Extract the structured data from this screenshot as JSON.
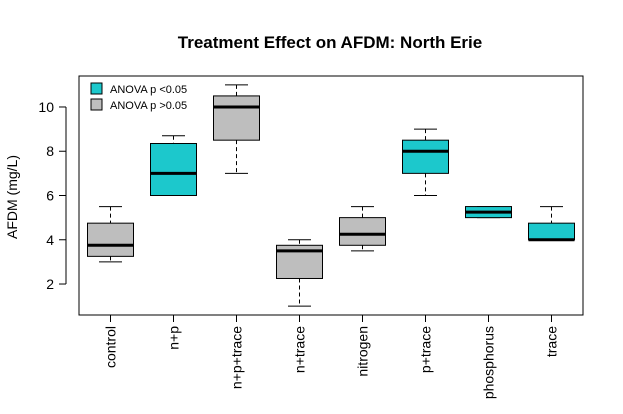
{
  "chart_data": {
    "type": "box",
    "title": "Treatment Effect on AFDM: North Erie",
    "xlabel": "",
    "ylabel": "AFDM (mg/L)",
    "ylim": [
      0.6,
      11.4
    ],
    "yticks": [
      2,
      4,
      6,
      8,
      10
    ],
    "colors": {
      "significant": "#1cc8cc",
      "not_significant": "#bebebe"
    },
    "legend": {
      "placement": "top-left",
      "entries": [
        {
          "label": "ANOVA p <0.05",
          "group": "significant"
        },
        {
          "label": "ANOVA p >0.05",
          "group": "not_significant"
        }
      ]
    },
    "boxes": [
      {
        "category": "control",
        "min": 3.0,
        "q1": 3.25,
        "median": 3.75,
        "q3": 4.75,
        "max": 5.5,
        "group": "not_significant"
      },
      {
        "category": "n+p",
        "min": 6.0,
        "q1": 6.0,
        "median": 7.0,
        "q3": 8.35,
        "max": 8.7,
        "group": "significant"
      },
      {
        "category": "n+p+trace",
        "min": 7.0,
        "q1": 8.5,
        "median": 10.0,
        "q3": 10.5,
        "max": 11.0,
        "group": "not_significant"
      },
      {
        "category": "n+trace",
        "min": 1.0,
        "q1": 2.25,
        "median": 3.5,
        "q3": 3.75,
        "max": 4.0,
        "group": "not_significant"
      },
      {
        "category": "nitrogen",
        "min": 3.5,
        "q1": 3.75,
        "median": 4.25,
        "q3": 5.0,
        "max": 5.5,
        "group": "not_significant"
      },
      {
        "category": "p+trace",
        "min": 6.0,
        "q1": 7.0,
        "median": 8.0,
        "q3": 8.5,
        "max": 9.0,
        "group": "significant"
      },
      {
        "category": "phosphorus",
        "min": 5.0,
        "q1": 5.0,
        "median": 5.25,
        "q3": 5.5,
        "max": 5.5,
        "group": "significant"
      },
      {
        "category": "trace",
        "min": 4.0,
        "q1": 4.0,
        "median": 4.0,
        "q3": 4.75,
        "max": 5.5,
        "group": "significant"
      }
    ]
  }
}
